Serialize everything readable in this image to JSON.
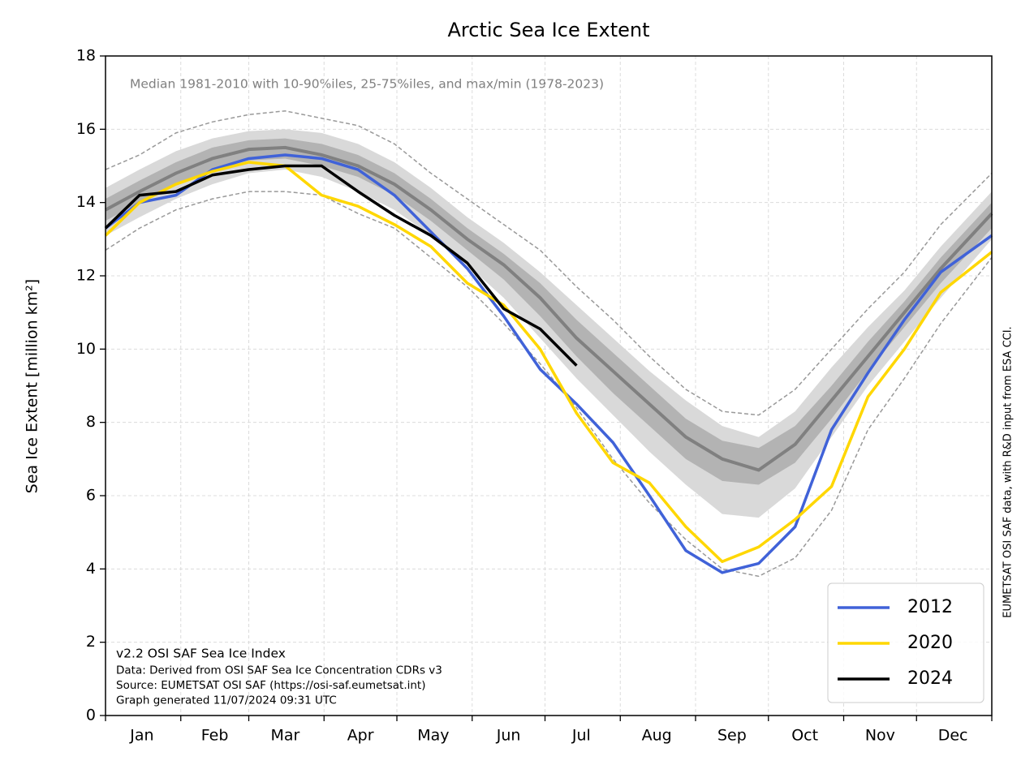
{
  "chart_data": {
    "type": "line",
    "title": "Arctic Sea Ice Extent",
    "subtitle": "Median 1981-2010 with 10-90%iles, 25-75%iles, and max/min (1978-2023)",
    "ylabel": "Sea Ice Extent [million km²]",
    "side_note": "EUMETSAT OSI SAF data, with R&D input from ESA CCI.",
    "notes": [
      "v2.2 OSI SAF Sea Ice Index",
      "Data: Derived from OSI SAF Sea Ice Concentration CDRs v3",
      "Source: EUMETSAT OSI SAF (https://osi-saf.eumetsat.int)",
      "Graph generated 11/07/2024 09:31 UTC"
    ],
    "x": [
      1,
      15,
      30,
      45,
      60,
      75,
      90,
      105,
      120,
      135,
      150,
      165,
      180,
      195,
      210,
      225,
      240,
      255,
      270,
      285,
      300,
      315,
      330,
      345,
      366
    ],
    "xlim": [
      1,
      366
    ],
    "xticks": [
      {
        "value": 16,
        "label": "Jan"
      },
      {
        "value": 46,
        "label": "Feb"
      },
      {
        "value": 75,
        "label": "Mar"
      },
      {
        "value": 106,
        "label": "Apr"
      },
      {
        "value": 136,
        "label": "May"
      },
      {
        "value": 167,
        "label": "Jun"
      },
      {
        "value": 197,
        "label": "Jul"
      },
      {
        "value": 228,
        "label": "Aug"
      },
      {
        "value": 259,
        "label": "Sep"
      },
      {
        "value": 289,
        "label": "Oct"
      },
      {
        "value": 320,
        "label": "Nov"
      },
      {
        "value": 350,
        "label": "Dec"
      }
    ],
    "month_boundaries": [
      1,
      32,
      60,
      91,
      121,
      152,
      182,
      213,
      244,
      274,
      305,
      335,
      366
    ],
    "ylim": [
      0,
      18
    ],
    "yticks": [
      0,
      2,
      4,
      6,
      8,
      10,
      12,
      14,
      16,
      18
    ],
    "grid": true,
    "legend": "lower right",
    "range": {
      "color": "#999999",
      "min": [
        12.7,
        13.3,
        13.8,
        14.1,
        14.3,
        14.3,
        14.2,
        13.7,
        13.3,
        12.5,
        11.7,
        10.7,
        9.6,
        8.4,
        7.0,
        5.8,
        4.8,
        4.0,
        3.8,
        4.3,
        5.6,
        7.8,
        9.2,
        10.7,
        12.5
      ],
      "max": [
        14.9,
        15.3,
        15.9,
        16.2,
        16.4,
        16.5,
        16.3,
        16.1,
        15.6,
        14.8,
        14.1,
        13.4,
        12.7,
        11.7,
        10.8,
        9.8,
        8.9,
        8.3,
        8.2,
        8.9,
        10.0,
        11.1,
        12.1,
        13.4,
        14.8
      ]
    },
    "bands": [
      {
        "color": "#d9d9d9",
        "lower": [
          13.1,
          13.6,
          14.1,
          14.5,
          14.8,
          14.9,
          14.7,
          14.3,
          13.8,
          13.1,
          12.3,
          11.4,
          10.3,
          9.2,
          8.2,
          7.2,
          6.3,
          5.5,
          5.4,
          6.2,
          7.6,
          9.0,
          10.2,
          11.4,
          13.0
        ],
        "upper": [
          14.4,
          14.9,
          15.4,
          15.75,
          15.95,
          16.0,
          15.9,
          15.6,
          15.1,
          14.4,
          13.6,
          12.9,
          12.1,
          11.2,
          10.3,
          9.4,
          8.6,
          7.9,
          7.6,
          8.3,
          9.5,
          10.6,
          11.6,
          12.8,
          14.3
        ]
      },
      {
        "color": "#b3b3b3",
        "lower": [
          13.5,
          14.0,
          14.5,
          14.9,
          15.15,
          15.2,
          15.0,
          14.7,
          14.2,
          13.5,
          12.7,
          11.9,
          10.9,
          9.8,
          8.8,
          7.9,
          7.0,
          6.4,
          6.3,
          6.9,
          8.1,
          9.4,
          10.6,
          11.8,
          13.3
        ],
        "upper": [
          14.1,
          14.6,
          15.1,
          15.5,
          15.7,
          15.75,
          15.6,
          15.3,
          14.8,
          14.1,
          13.3,
          12.6,
          11.8,
          10.8,
          9.9,
          9.0,
          8.1,
          7.5,
          7.3,
          7.9,
          9.0,
          10.2,
          11.3,
          12.5,
          14.0
        ]
      }
    ],
    "median": {
      "color": "#808080",
      "values": [
        13.8,
        14.3,
        14.8,
        15.2,
        15.45,
        15.5,
        15.3,
        15.0,
        14.5,
        13.8,
        13.0,
        12.3,
        11.4,
        10.3,
        9.4,
        8.5,
        7.6,
        7.0,
        6.7,
        7.4,
        8.6,
        9.8,
        11.0,
        12.2,
        13.7
      ]
    },
    "series": [
      {
        "name": "2012",
        "color": "#4062d8",
        "values": [
          13.3,
          14.0,
          14.2,
          14.9,
          15.2,
          15.3,
          15.2,
          14.9,
          14.2,
          13.2,
          12.2,
          10.9,
          9.45,
          8.5,
          7.45,
          6.0,
          4.5,
          3.9,
          4.15,
          5.15,
          7.8,
          9.35,
          10.8,
          12.1,
          13.1
        ]
      },
      {
        "name": "2020",
        "color": "#ffd700",
        "values": [
          13.1,
          14.0,
          14.5,
          14.85,
          15.1,
          15.0,
          14.2,
          13.9,
          13.4,
          12.8,
          11.8,
          11.2,
          10.0,
          8.25,
          6.9,
          6.35,
          5.15,
          4.2,
          4.6,
          5.35,
          6.25,
          8.7,
          10.0,
          11.55,
          12.65
        ]
      },
      {
        "name": "2024",
        "color": "#000000",
        "values": [
          13.3,
          14.2,
          14.3,
          14.75,
          14.9,
          15.0,
          15.0,
          14.3,
          13.65,
          13.1,
          12.35,
          11.1,
          10.55,
          9.55,
          null,
          null,
          null,
          null,
          null,
          null,
          null,
          null,
          null,
          null,
          null
        ]
      }
    ]
  }
}
